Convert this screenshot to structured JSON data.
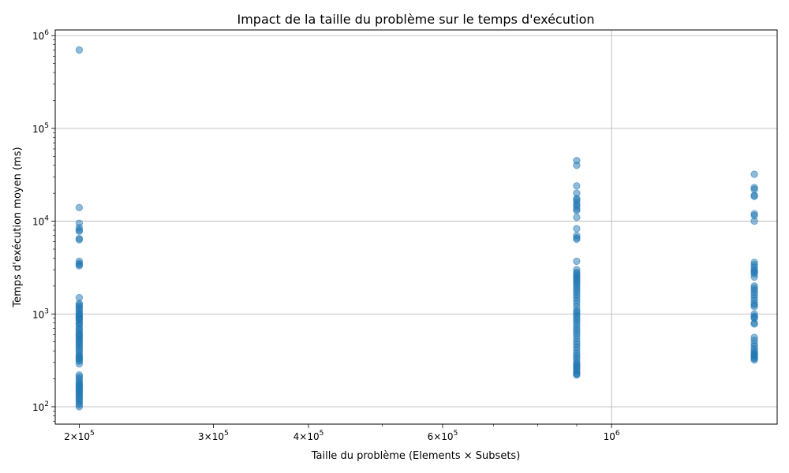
{
  "chart_data": {
    "type": "scatter",
    "title": "Impact de la taille du problème sur le temps d'exécution",
    "xlabel": "Taille du problème (Elements × Subsets)",
    "ylabel": "Temps d'exécution moyen (ms)",
    "x_scale": "log",
    "y_scale": "log",
    "xlim": [
      186000,
      1650000
    ],
    "ylim": [
      65,
      1150000
    ],
    "grid": true,
    "point_color": "#1f77b4",
    "point_alpha": 0.5,
    "x_ticks": [
      {
        "value": 200000,
        "mantissa": "2",
        "base": "10",
        "exp": "5"
      },
      {
        "value": 300000,
        "mantissa": "3",
        "base": "10",
        "exp": "5"
      },
      {
        "value": 400000,
        "mantissa": "4",
        "base": "10",
        "exp": "5"
      },
      {
        "value": 600000,
        "mantissa": "6",
        "base": "10",
        "exp": "5"
      },
      {
        "value": 1000000,
        "mantissa": "",
        "base": "10",
        "exp": "6"
      }
    ],
    "y_ticks": [
      {
        "value": 100,
        "base": "10",
        "exp": "2"
      },
      {
        "value": 1000,
        "base": "10",
        "exp": "3"
      },
      {
        "value": 10000,
        "base": "10",
        "exp": "4"
      },
      {
        "value": 100000,
        "base": "10",
        "exp": "5"
      },
      {
        "value": 1000000,
        "base": "10",
        "exp": "6"
      }
    ],
    "series": [
      {
        "x": 200000,
        "y": [
          700000,
          14000,
          9500,
          8500,
          8000,
          7800,
          6500,
          6300,
          3700,
          3500,
          3400,
          3300,
          1500,
          1300,
          1250,
          1200,
          1150,
          1100,
          1050,
          1000,
          980,
          950,
          920,
          900,
          870,
          850,
          800,
          780,
          750,
          700,
          680,
          650,
          620,
          600,
          580,
          560,
          540,
          520,
          500,
          480,
          460,
          440,
          420,
          400,
          380,
          360,
          350,
          340,
          330,
          320,
          310,
          290,
          220,
          210,
          200,
          190,
          180,
          175,
          170,
          165,
          160,
          155,
          150,
          145,
          140,
          135,
          130,
          125,
          120,
          115,
          110,
          105,
          100
        ]
      },
      {
        "x": 900000,
        "y": [
          45000,
          40000,
          24000,
          20000,
          17500,
          17000,
          16000,
          15000,
          14500,
          13500,
          13000,
          11000,
          8300,
          7000,
          6600,
          6400,
          3700,
          3000,
          2800,
          2700,
          2600,
          2500,
          2400,
          2300,
          2200,
          2100,
          2000,
          1900,
          1800,
          1700,
          1600,
          1500,
          1400,
          1300,
          1200,
          1100,
          1050,
          1000,
          950,
          900,
          850,
          800,
          750,
          700,
          660,
          620,
          580,
          540,
          500,
          470,
          440,
          410,
          380,
          360,
          340,
          320,
          300,
          290,
          280,
          270,
          260,
          250,
          240,
          230,
          225,
          220
        ]
      },
      {
        "x": 1540000,
        "y": [
          32000,
          23000,
          22000,
          19000,
          18500,
          12000,
          11500,
          10000,
          3600,
          3400,
          3200,
          3000,
          2900,
          2800,
          2700,
          2500,
          2000,
          1900,
          1800,
          1700,
          1600,
          1500,
          1400,
          1300,
          1250,
          1200,
          1000,
          950,
          920,
          900,
          800,
          780,
          560,
          520,
          480,
          450,
          420,
          400,
          380,
          370,
          360,
          350,
          340,
          330,
          320
        ]
      }
    ]
  }
}
